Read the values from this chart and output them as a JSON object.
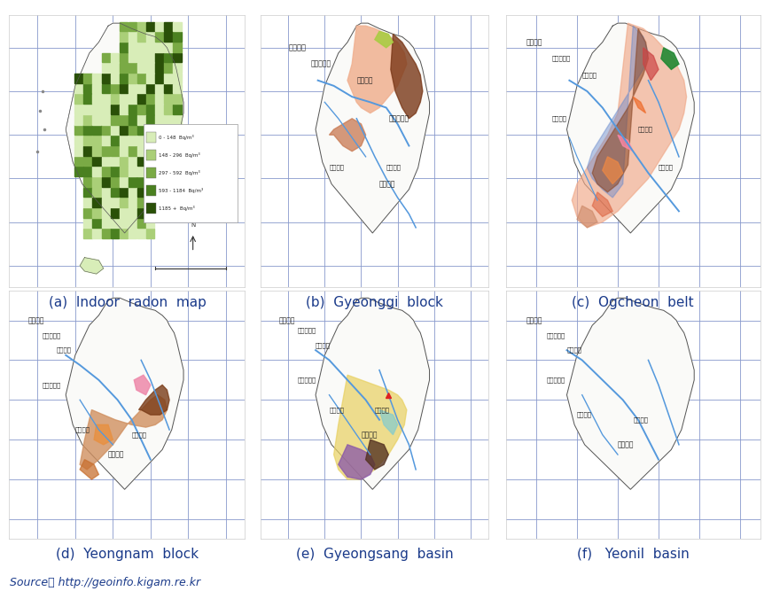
{
  "figure_width": 8.71,
  "figure_height": 6.76,
  "dpi": 100,
  "bg": "#ffffff",
  "captions": [
    "(a)  Indoor  radon  map",
    "(b)  Gyeonggi  block",
    "(c)  Ogcheon  belt",
    "(d)  Yeongnam  block",
    "(e)  Gyeongsang  basin",
    "(f)   Yeonil  basin"
  ],
  "source_text": "Source： http://geoinfo.kigam.re.kr",
  "caption_fontsize": 11,
  "source_fontsize": 9,
  "caption_color": "#1a3a8a",
  "source_color": "#1a3a8a",
  "legend_colors": [
    "#d8edb8",
    "#aacf78",
    "#7aaa45",
    "#4a8020",
    "#2a5008"
  ],
  "legend_labels": [
    "0 - 148  Bq/m³",
    "148 - 296  Bq/m³",
    "297 - 592  Bq/m³",
    "593 - 1184  Bq/m³",
    "1185 +  Bq/m³"
  ],
  "grid_color": "#8899cc",
  "grid_lw": 0.6,
  "korea_outline": "#333333",
  "korea_fill": "#fafaf8",
  "river_color": "#5599dd",
  "river_lw": 1.4
}
